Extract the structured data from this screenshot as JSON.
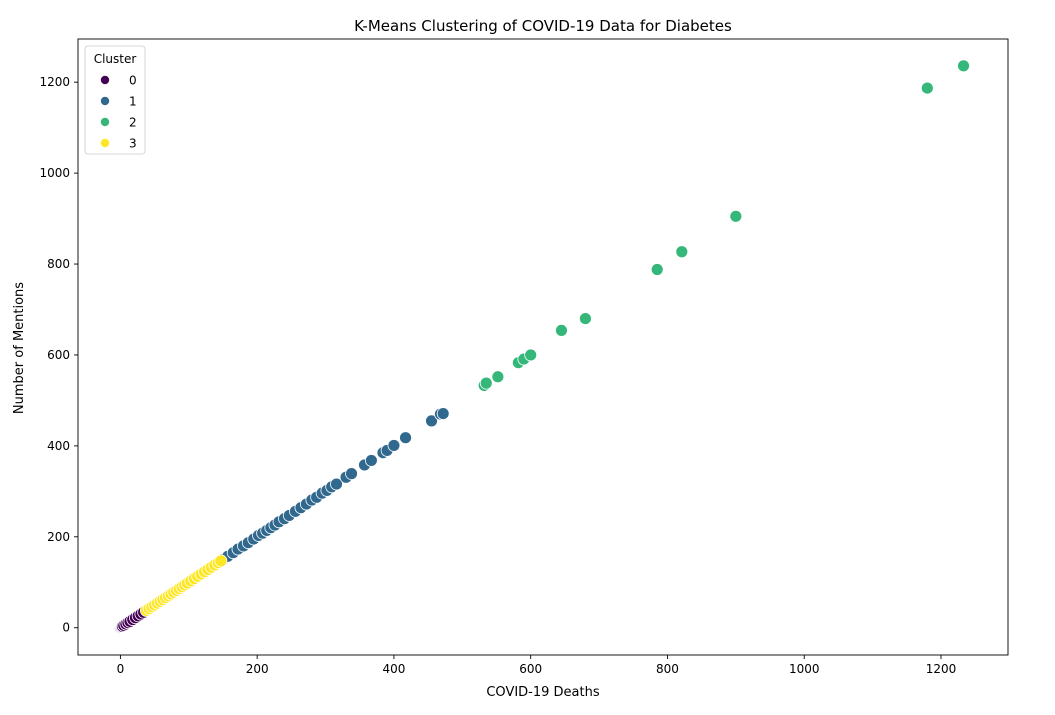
{
  "chart_data": {
    "type": "scatter",
    "title": "K-Means Clustering of COVID-19 Data for Diabetes",
    "xlabel": "COVID-19 Deaths",
    "ylabel": "Number of Mentions",
    "xlim": [
      -62,
      1298
    ],
    "ylim": [
      -60,
      1295
    ],
    "xticks": [
      0,
      200,
      400,
      600,
      800,
      1000,
      1200
    ],
    "yticks": [
      0,
      200,
      400,
      600,
      800,
      1000,
      1200
    ],
    "grid": false,
    "legend": {
      "title": "Cluster",
      "position": "top-left"
    },
    "series": [
      {
        "name": "0",
        "color": "#440154",
        "points": [
          [
            0,
            0
          ],
          [
            1,
            1
          ],
          [
            2,
            2
          ],
          [
            3,
            3
          ],
          [
            5,
            5
          ],
          [
            8,
            8
          ],
          [
            11,
            11
          ],
          [
            14,
            14
          ],
          [
            18,
            18
          ],
          [
            22,
            22
          ],
          [
            26,
            26
          ],
          [
            30,
            30
          ],
          [
            34,
            34
          ]
        ]
      },
      {
        "name": "1",
        "color": "#31688e",
        "points": [
          [
            150,
            150
          ],
          [
            157,
            157
          ],
          [
            165,
            165
          ],
          [
            172,
            173
          ],
          [
            180,
            180
          ],
          [
            187,
            187
          ],
          [
            195,
            195
          ],
          [
            202,
            203
          ],
          [
            208,
            208
          ],
          [
            214,
            214
          ],
          [
            220,
            220
          ],
          [
            226,
            226
          ],
          [
            232,
            233
          ],
          [
            240,
            240
          ],
          [
            247,
            247
          ],
          [
            256,
            256
          ],
          [
            264,
            264
          ],
          [
            272,
            272
          ],
          [
            280,
            281
          ],
          [
            287,
            287
          ],
          [
            295,
            296
          ],
          [
            302,
            302
          ],
          [
            309,
            310
          ],
          [
            316,
            316
          ],
          [
            330,
            331
          ],
          [
            338,
            339
          ],
          [
            357,
            358
          ],
          [
            367,
            368
          ],
          [
            384,
            385
          ],
          [
            390,
            390
          ],
          [
            400,
            401
          ],
          [
            417,
            418
          ],
          [
            455,
            455
          ],
          [
            468,
            470
          ],
          [
            472,
            471
          ]
        ]
      },
      {
        "name": "2",
        "color": "#35b779",
        "points": [
          [
            532,
            533
          ],
          [
            535,
            538
          ],
          [
            552,
            552
          ],
          [
            582,
            583
          ],
          [
            590,
            591
          ],
          [
            600,
            600
          ],
          [
            645,
            654
          ],
          [
            680,
            680
          ],
          [
            785,
            788
          ],
          [
            821,
            827
          ],
          [
            900,
            905
          ],
          [
            1180,
            1187
          ],
          [
            1233,
            1236
          ]
        ]
      },
      {
        "name": "3",
        "color": "#fde725",
        "points": [
          [
            38,
            38
          ],
          [
            42,
            42
          ],
          [
            46,
            46
          ],
          [
            50,
            50
          ],
          [
            54,
            54
          ],
          [
            58,
            58
          ],
          [
            62,
            62
          ],
          [
            66,
            66
          ],
          [
            70,
            70
          ],
          [
            74,
            74
          ],
          [
            78,
            78
          ],
          [
            82,
            82
          ],
          [
            86,
            86
          ],
          [
            90,
            90
          ],
          [
            94,
            94
          ],
          [
            98,
            98
          ],
          [
            103,
            103
          ],
          [
            108,
            108
          ],
          [
            113,
            113
          ],
          [
            118,
            118
          ],
          [
            123,
            123
          ],
          [
            128,
            128
          ],
          [
            133,
            133
          ],
          [
            138,
            138
          ],
          [
            143,
            143
          ],
          [
            147,
            147
          ]
        ]
      }
    ]
  }
}
